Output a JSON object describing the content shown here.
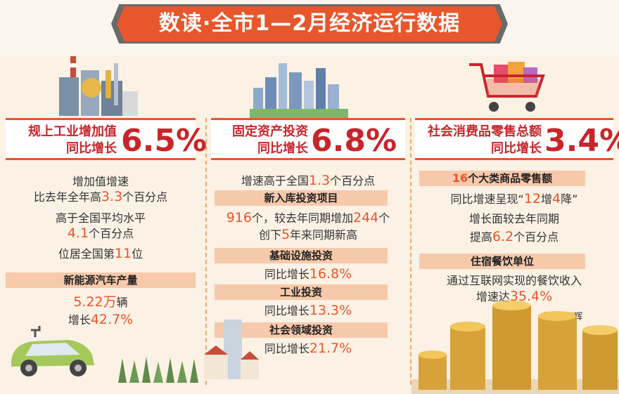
{
  "title": "数读·全市1—2月经济运行数据",
  "col1": {
    "header_line1": "规上工业增加值",
    "header_line2": "同比增长",
    "header_value": "6.5%",
    "l1": "增加值增速",
    "l2a": "比去年全年高",
    "l2n": "3.3",
    "l2b": "个百分点",
    "l3": "高于全国平均水平",
    "l4n": "4.1",
    "l4b": "个百分点",
    "l5a": "位居全国第",
    "l5n": "11",
    "l5b": "位",
    "band": "新能源汽车产量",
    "l6n": "5.22",
    "l6u": "万",
    "l6b": "辆",
    "l7a": "增长",
    "l7n": "42.7%"
  },
  "col2": {
    "header_line1": "固定资产投资",
    "header_line2": "同比增长",
    "header_value": "6.8%",
    "l1a": "增速高于全国",
    "l1n": "1.3",
    "l1b": "个百分点",
    "band1": "新入库投资项目",
    "l2n": "916",
    "l2a": "个，较去年同期增加",
    "l2m": "244",
    "l2b": "个",
    "l3a": "创下",
    "l3n": "5",
    "l3b": "年来同期新高",
    "band2": "基础设施投资",
    "l4a": "同比增长",
    "l4n": "16.8%",
    "band3": "工业投资",
    "l5a": "同比增长",
    "l5n": "13.3%",
    "band4": "社会领域投资",
    "l6a": "同比增长",
    "l6n": "21.7%"
  },
  "col3": {
    "header_line1": "社会消费品零售总额",
    "header_line2": "同比增长",
    "header_value": "3.4%",
    "band1a": "16",
    "band1b": "个大类商品零售额",
    "l1a": "同比增速呈现“",
    "l1n": "12",
    "l1m": "增",
    "l1k": "4",
    "l1b": "降”",
    "l2": "增长面较去年同期",
    "l3a": "提高",
    "l3n": "6.2",
    "l3b": "个百分点",
    "band2": "住宿餐饮单位",
    "l4": "通过互联网实现的餐饮收入",
    "l5a": "增速达",
    "l5n": "35.4%"
  },
  "credit": "制图/张辉",
  "colors": {
    "accent": "#e8562b",
    "header_text": "#c8252b",
    "band": "#f7c9ab",
    "background": "#fbf1e4"
  },
  "icons": [
    "factory-illustration",
    "city-buildings-illustration",
    "shopping-cart-illustration",
    "electric-car-illustration",
    "houses-illustration",
    "gold-coins-illustration",
    "trees-illustration"
  ]
}
